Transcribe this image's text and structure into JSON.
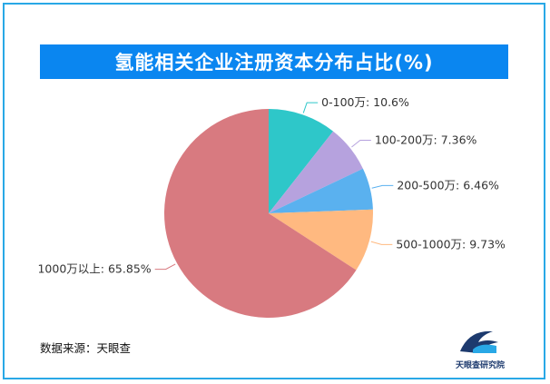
{
  "chart_data": {
    "type": "pie",
    "title": "氢能相关企业注册资本分布占比(%)",
    "unit": "%",
    "slices": [
      {
        "label": "0-100万",
        "value": 10.6,
        "display": "10.6%",
        "color": "#2ec7c9"
      },
      {
        "label": "100-200万",
        "value": 7.36,
        "display": "7.36%",
        "color": "#b6a2de"
      },
      {
        "label": "200-500万",
        "value": 6.46,
        "display": "6.46%",
        "color": "#5ab1ef"
      },
      {
        "label": "500-1000万",
        "value": 9.73,
        "display": "9.73%",
        "color": "#ffb980"
      },
      {
        "label": "1000万以上",
        "value": 65.85,
        "display": "65.85%",
        "color": "#d87a80"
      }
    ]
  },
  "footer": {
    "source": "数据来源：天眼查",
    "logo_text": "天眼查研究院"
  }
}
